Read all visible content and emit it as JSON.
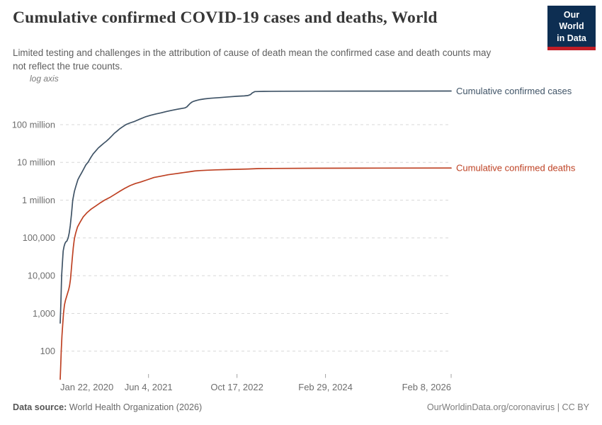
{
  "header": {
    "title": "Cumulative confirmed COVID-19 cases and deaths, World",
    "subtitle": "Limited testing and challenges in the attribution of cause of death mean the confirmed case and death counts may not reflect the true counts.",
    "logo": {
      "line1": "Our World",
      "line2": "in Data"
    }
  },
  "chart_data": {
    "type": "line",
    "log_scale": true,
    "scale_toggle_label": "log axis",
    "grid": true,
    "legend_position": "right-of-line-ends",
    "y_axis": {
      "ticks": [
        {
          "label": "100 million",
          "value": 100000000
        },
        {
          "label": "10 million",
          "value": 10000000
        },
        {
          "label": "1 million",
          "value": 1000000
        },
        {
          "label": "100,000",
          "value": 100000
        },
        {
          "label": "10,000",
          "value": 10000
        },
        {
          "label": "1,000",
          "value": 1000
        },
        {
          "label": "100",
          "value": 100
        }
      ]
    },
    "x_axis": {
      "max_day": 2209,
      "ticks": [
        {
          "label": "Jan 22, 2020",
          "day": 0
        },
        {
          "label": "Jun 4, 2021",
          "day": 499
        },
        {
          "label": "Oct 17, 2022",
          "day": 999
        },
        {
          "label": "Feb 29, 2024",
          "day": 1499
        },
        {
          "label": "Feb 8, 2026",
          "day": 2209
        }
      ]
    },
    "series": [
      {
        "name": "Cumulative confirmed cases",
        "color": "#3f5366",
        "points": [
          [
            0,
            555
          ],
          [
            4,
            2000
          ],
          [
            8,
            9800
          ],
          [
            12,
            20000
          ],
          [
            17,
            45000
          ],
          [
            22,
            60000
          ],
          [
            27,
            71500
          ],
          [
            32,
            79000
          ],
          [
            38,
            83000
          ],
          [
            45,
            100000
          ],
          [
            51,
            134000
          ],
          [
            57,
            210000
          ],
          [
            64,
            440000
          ],
          [
            71,
            1000000
          ],
          [
            80,
            1700000
          ],
          [
            88,
            2300000
          ],
          [
            100,
            3500000
          ],
          [
            110,
            4300000
          ],
          [
            120,
            5200000
          ],
          [
            132,
            6600000
          ],
          [
            145,
            8600000
          ],
          [
            158,
            10200000
          ],
          [
            172,
            13300000
          ],
          [
            186,
            16800000
          ],
          [
            200,
            20000000
          ],
          [
            215,
            24000000
          ],
          [
            230,
            27700000
          ],
          [
            245,
            31800000
          ],
          [
            260,
            36200000
          ],
          [
            275,
            41900000
          ],
          [
            290,
            49500000
          ],
          [
            305,
            58600000
          ],
          [
            320,
            66800000
          ],
          [
            335,
            76800000
          ],
          [
            350,
            86400000
          ],
          [
            372,
            101000000
          ],
          [
            395,
            111500000
          ],
          [
            420,
            122000000
          ],
          [
            450,
            140000000
          ],
          [
            480,
            160000000
          ],
          [
            510,
            176500000
          ],
          [
            540,
            192000000
          ],
          [
            570,
            206000000
          ],
          [
            600,
            223000000
          ],
          [
            630,
            239000000
          ],
          [
            660,
            255000000
          ],
          [
            685,
            268000000
          ],
          [
            705,
            278000000
          ],
          [
            715,
            295000000
          ],
          [
            725,
            330000000
          ],
          [
            735,
            368000000
          ],
          [
            745,
            398000000
          ],
          [
            755,
            418000000
          ],
          [
            770,
            438000000
          ],
          [
            790,
            462000000
          ],
          [
            815,
            482000000
          ],
          [
            850,
            500000000
          ],
          [
            900,
            520000000
          ],
          [
            950,
            545000000
          ],
          [
            1000,
            565000000
          ],
          [
            1040,
            578000000
          ],
          [
            1060,
            590000000
          ],
          [
            1075,
            625000000
          ],
          [
            1085,
            690000000
          ],
          [
            1100,
            752000000
          ],
          [
            1150,
            762000000
          ],
          [
            1250,
            768000000
          ],
          [
            1440,
            773000000
          ],
          [
            1800,
            776000000
          ],
          [
            2209,
            778000000
          ]
        ]
      },
      {
        "name": "Cumulative confirmed deaths",
        "color": "#be4123",
        "points": [
          [
            0,
            18
          ],
          [
            3,
            40
          ],
          [
            6,
            106
          ],
          [
            10,
            259
          ],
          [
            14,
            490
          ],
          [
            19,
            1018
          ],
          [
            24,
            1669
          ],
          [
            30,
            2251
          ],
          [
            36,
            2800
          ],
          [
            42,
            3460
          ],
          [
            48,
            4300
          ],
          [
            53,
            5400
          ],
          [
            58,
            8000
          ],
          [
            63,
            14500
          ],
          [
            68,
            28000
          ],
          [
            74,
            56000
          ],
          [
            80,
            95000
          ],
          [
            88,
            137000
          ],
          [
            98,
            196000
          ],
          [
            112,
            260000
          ],
          [
            130,
            360000
          ],
          [
            152,
            470000
          ],
          [
            175,
            580000
          ],
          [
            200,
            700000
          ],
          [
            228,
            860000
          ],
          [
            250,
            1000000
          ],
          [
            280,
            1180000
          ],
          [
            310,
            1440000
          ],
          [
            340,
            1760000
          ],
          [
            365,
            2060000
          ],
          [
            395,
            2440000
          ],
          [
            425,
            2760000
          ],
          [
            455,
            3040000
          ],
          [
            490,
            3440000
          ],
          [
            530,
            3980000
          ],
          [
            570,
            4330000
          ],
          [
            610,
            4720000
          ],
          [
            650,
            5020000
          ],
          [
            695,
            5360000
          ],
          [
            730,
            5660000
          ],
          [
            760,
            5930000
          ],
          [
            790,
            6080000
          ],
          [
            830,
            6230000
          ],
          [
            880,
            6340000
          ],
          [
            940,
            6470000
          ],
          [
            1000,
            6580000
          ],
          [
            1060,
            6680000
          ],
          [
            1120,
            6860000
          ],
          [
            1200,
            6930000
          ],
          [
            1440,
            7010000
          ],
          [
            1800,
            7070000
          ],
          [
            2209,
            7100000
          ]
        ]
      }
    ],
    "colors": {
      "grid": "#d8d8d8",
      "tick_text": "#6e6e6e"
    }
  },
  "footer": {
    "source_label": "Data source:",
    "source_value": " World Health Organization (2026)",
    "link": "OurWorldinData.org/coronavirus",
    "separator": " | ",
    "license": "CC BY"
  }
}
